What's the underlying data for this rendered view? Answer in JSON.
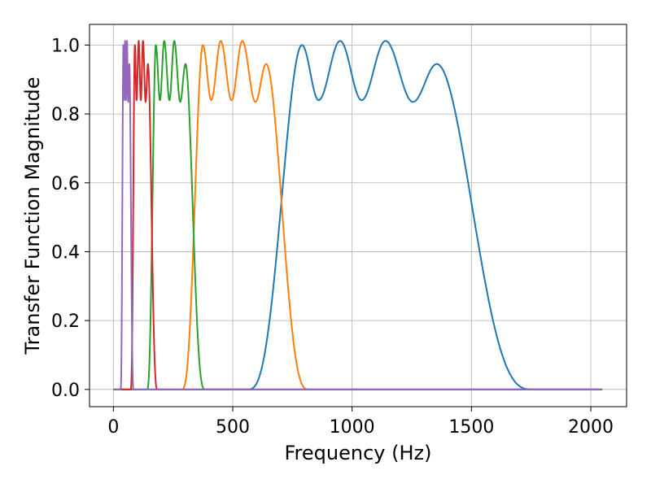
{
  "chart_data": {
    "type": "line",
    "title": "",
    "xlabel": "Frequency (Hz)",
    "ylabel": "Transfer Function Magnitude",
    "xlim": [
      -100,
      2150
    ],
    "ylim": [
      -0.05,
      1.06
    ],
    "xticks": [
      0,
      500,
      1000,
      1500,
      2000
    ],
    "yticks": [
      0.0,
      0.2,
      0.4,
      0.6,
      0.8,
      1.0
    ],
    "xtick_labels": [
      "0",
      "500",
      "1000",
      "1500",
      "2000"
    ],
    "ytick_labels": [
      "0.0",
      "0.2",
      "0.4",
      "0.6",
      "0.8",
      "1.0"
    ],
    "grid": true,
    "x_range_plotted": [
      0,
      2048
    ],
    "series": [
      {
        "color": "#1f77b4",
        "peaks": [
          {
            "x": 790,
            "y": 1.0
          },
          {
            "x": 860,
            "y": 0.84
          },
          {
            "x": 950,
            "y": 1.012
          },
          {
            "x": 1040,
            "y": 0.84
          },
          {
            "x": 1140,
            "y": 1.012
          },
          {
            "x": 1255,
            "y": 0.835
          },
          {
            "x": 1355,
            "y": 0.945
          }
        ],
        "rise": {
          "x_start": 560,
          "x_end": 785
        },
        "fall": {
          "x_start": 1360,
          "x_end": 1760
        }
      },
      {
        "color": "#ff7f0e",
        "peaks": [
          {
            "x": 375,
            "y": 1.0
          },
          {
            "x": 410,
            "y": 0.84
          },
          {
            "x": 450,
            "y": 1.012
          },
          {
            "x": 495,
            "y": 0.84
          },
          {
            "x": 540,
            "y": 1.012
          },
          {
            "x": 595,
            "y": 0.835
          },
          {
            "x": 640,
            "y": 0.945
          }
        ],
        "rise": {
          "x_start": 285,
          "x_end": 370
        },
        "fall": {
          "x_start": 645,
          "x_end": 820
        }
      },
      {
        "color": "#2ca02c",
        "peaks": [
          {
            "x": 178,
            "y": 1.0
          },
          {
            "x": 195,
            "y": 0.84
          },
          {
            "x": 213,
            "y": 1.012
          },
          {
            "x": 235,
            "y": 0.84
          },
          {
            "x": 255,
            "y": 1.012
          },
          {
            "x": 280,
            "y": 0.835
          },
          {
            "x": 302,
            "y": 0.945
          }
        ],
        "rise": {
          "x_start": 140,
          "x_end": 176
        },
        "fall": {
          "x_start": 305,
          "x_end": 385
        }
      },
      {
        "color": "#d62728",
        "peaks": [
          {
            "x": 90,
            "y": 1.0
          },
          {
            "x": 97,
            "y": 0.84
          },
          {
            "x": 106,
            "y": 1.012
          },
          {
            "x": 115,
            "y": 0.84
          },
          {
            "x": 124,
            "y": 1.012
          },
          {
            "x": 135,
            "y": 0.835
          },
          {
            "x": 145,
            "y": 0.945
          }
        ],
        "rise": {
          "x_start": 72,
          "x_end": 88
        },
        "fall": {
          "x_start": 147,
          "x_end": 185
        }
      },
      {
        "color": "#9467bd",
        "peaks": [
          {
            "x": 42,
            "y": 1.0
          },
          {
            "x": 45,
            "y": 0.84
          },
          {
            "x": 49,
            "y": 1.012
          },
          {
            "x": 53,
            "y": 0.84
          },
          {
            "x": 57,
            "y": 1.012
          },
          {
            "x": 62,
            "y": 0.835
          },
          {
            "x": 67,
            "y": 0.945
          }
        ],
        "rise": {
          "x_start": 30,
          "x_end": 41
        },
        "fall": {
          "x_start": 68,
          "x_end": 85
        }
      }
    ]
  }
}
